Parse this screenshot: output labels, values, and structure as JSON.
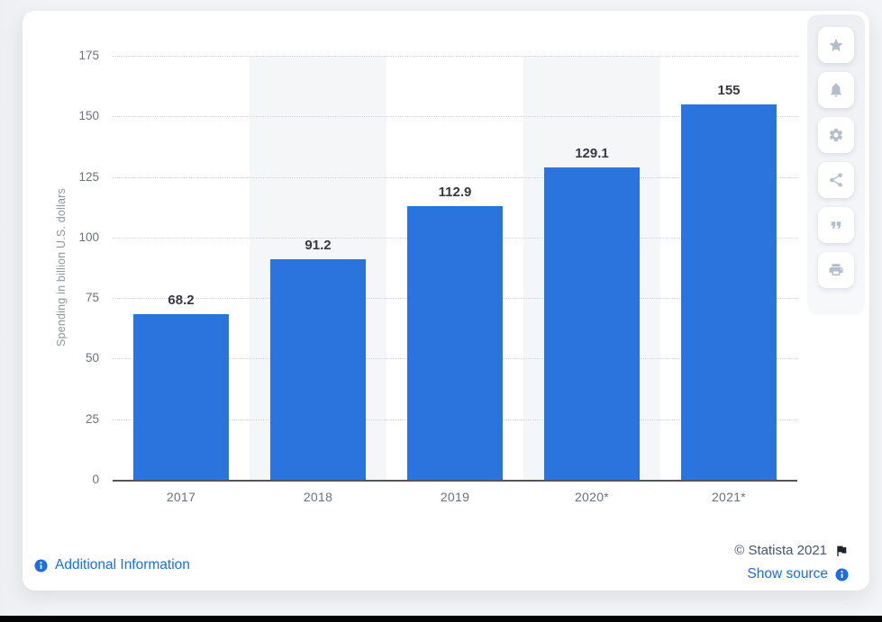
{
  "chart_data": {
    "type": "bar",
    "title": "",
    "categories": [
      "2017",
      "2018",
      "2019",
      "2020*",
      "2021*"
    ],
    "values": [
      68.2,
      91.2,
      112.9,
      129.1,
      155
    ],
    "value_labels": [
      "68.2",
      "91.2",
      "112.9",
      "129.1",
      "155"
    ],
    "xlabel": "",
    "ylabel": "Spending in billion U.S. dollars",
    "ylim": [
      0,
      175
    ],
    "yticks": [
      0,
      25,
      50,
      75,
      100,
      125,
      150,
      175
    ],
    "grid": "horizontal dotted",
    "legend": "none",
    "bar_color": "#2c74dd",
    "plot_band_color": "#f5f6f8",
    "alternating_plot_bands": true
  },
  "toolbar": {
    "buttons": [
      {
        "icon": "star-icon"
      },
      {
        "icon": "bell-icon"
      },
      {
        "icon": "gear-icon"
      },
      {
        "icon": "share-icon"
      },
      {
        "icon": "quote-icon"
      },
      {
        "icon": "print-icon"
      }
    ]
  },
  "footer": {
    "additional_information": "Additional Information",
    "copyright": "© Statista 2021",
    "show_source": "Show source"
  }
}
